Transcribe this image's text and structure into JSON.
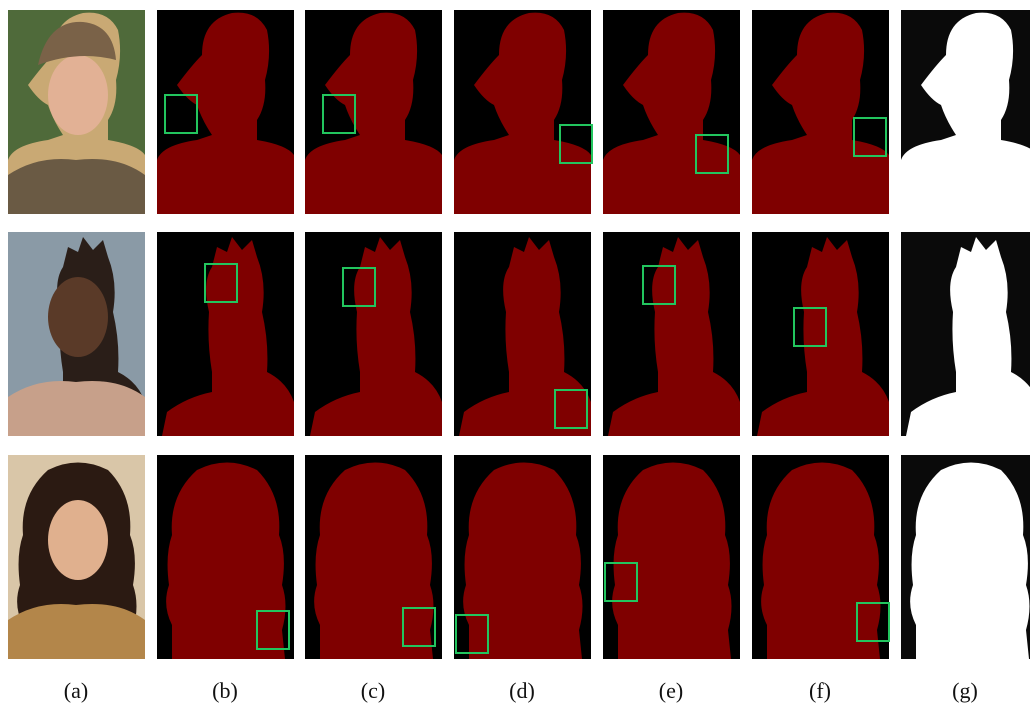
{
  "figure": {
    "labels": [
      "(a)",
      "(b)",
      "(c)",
      "(d)",
      "(e)",
      "(f)",
      "(g)"
    ]
  }
}
